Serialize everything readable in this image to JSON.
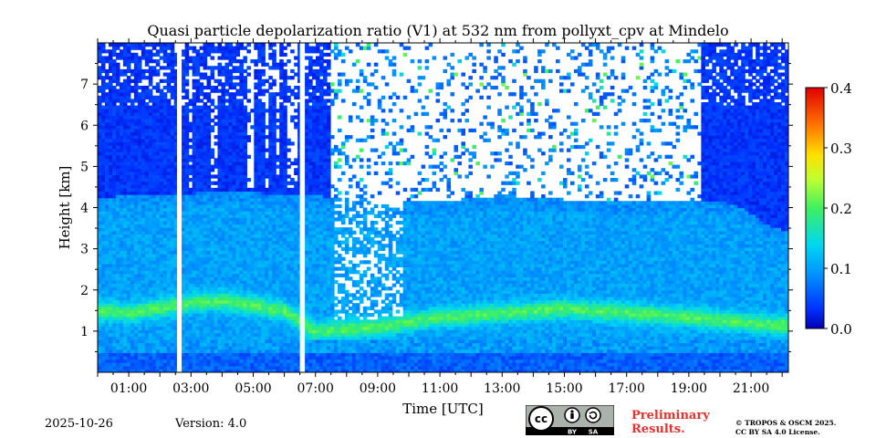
{
  "chart_data": {
    "type": "heatmap",
    "title": "Quasi particle depolarization ratio (V1) at 532 nm from pollyxt_cpv at Mindelo",
    "xlabel": "Time [UTC]",
    "ylabel": "Height [km]",
    "x_ticks": [
      "01:00",
      "03:00",
      "05:00",
      "07:00",
      "09:00",
      "11:00",
      "13:00",
      "15:00",
      "17:00",
      "19:00",
      "21:00"
    ],
    "y_ticks": [
      "1",
      "2",
      "3",
      "4",
      "5",
      "6",
      "7"
    ],
    "x_range_hours": [
      0.0,
      22.2
    ],
    "y_range_km": [
      0.0,
      8.0
    ],
    "colorbar": {
      "min": 0.0,
      "max": 0.4,
      "ticks": [
        "0.0",
        "0.1",
        "0.2",
        "0.3",
        "0.4"
      ],
      "colormap": "jet"
    },
    "data_gaps_hours": [
      [
        2.55,
        2.7
      ],
      [
        6.5,
        6.62
      ]
    ],
    "features": {
      "boundary_layer_top_km": [
        [
          0.0,
          4.2
        ],
        [
          1.0,
          4.35
        ],
        [
          2.0,
          4.3
        ],
        [
          4.0,
          4.4
        ],
        [
          7.0,
          4.3
        ],
        [
          9.0,
          4.1
        ],
        [
          11.0,
          4.15
        ],
        [
          13.0,
          4.3
        ],
        [
          15.0,
          4.2
        ],
        [
          17.0,
          4.15
        ],
        [
          19.0,
          4.2
        ],
        [
          20.5,
          4.1
        ],
        [
          21.5,
          3.6
        ],
        [
          22.2,
          3.4
        ]
      ],
      "elevated_layer_km": [
        [
          0.0,
          1.5
        ],
        [
          1.0,
          1.45
        ],
        [
          3.0,
          1.7
        ],
        [
          4.0,
          1.75
        ],
        [
          6.0,
          1.5
        ],
        [
          7.0,
          1.0
        ],
        [
          9.0,
          1.1
        ],
        [
          11.0,
          1.35
        ],
        [
          13.0,
          1.45
        ],
        [
          15.0,
          1.55
        ],
        [
          17.0,
          1.45
        ],
        [
          19.0,
          1.35
        ],
        [
          21.0,
          1.2
        ],
        [
          22.2,
          1.15
        ]
      ],
      "cloud_region_hours": [
        7.5,
        19.4
      ]
    }
  },
  "footer": {
    "date": "2025-10-26",
    "version": "Version: 4.0",
    "preliminary_line1": "Preliminary",
    "preliminary_line2": "Results.",
    "copyright_line1": "© TROPOS & OSCM 2025.",
    "copyright_line2": "CC BY SA 4.0 License.",
    "badge_cc": "cc",
    "badge_by": "BY",
    "badge_sa": "SA"
  }
}
